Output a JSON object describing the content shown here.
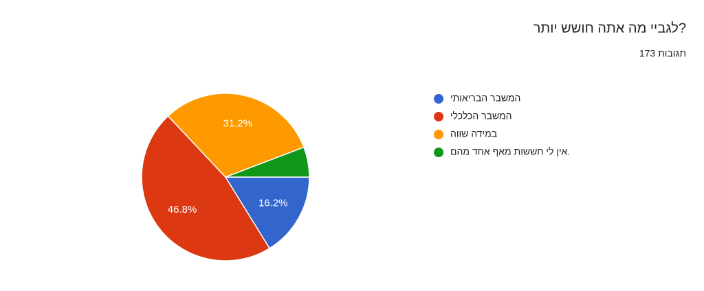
{
  "chart_data": {
    "type": "pie",
    "title": "לגביי מה אתה חושש יותר?",
    "subtitle": "173 תגובות",
    "categories": [
      "המשבר הבריאותי",
      "המשבר הכלכלי",
      "במידה שווה",
      "אין לי חששות מאף אחד מהם."
    ],
    "values": [
      16.2,
      46.8,
      31.2,
      5.8
    ],
    "value_labels": [
      "16.2%",
      "46.8%",
      "31.2%",
      null
    ],
    "colors": [
      "#3366cc",
      "#dc3912",
      "#ff9900",
      "#109618"
    ]
  }
}
